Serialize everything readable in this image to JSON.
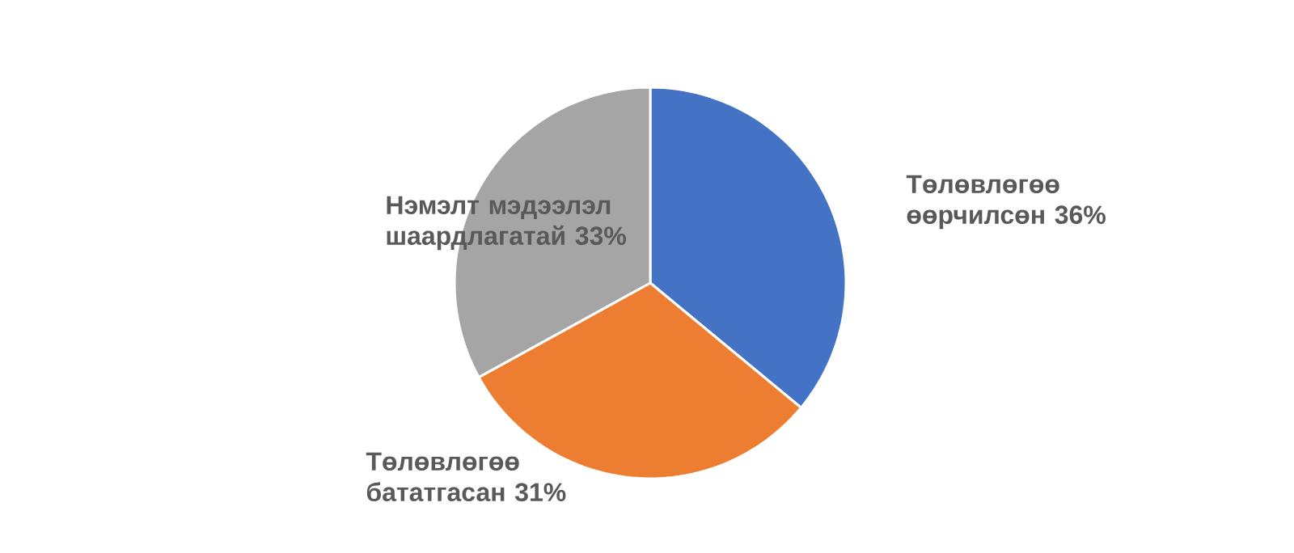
{
  "chart_data": {
    "type": "pie",
    "categories": [
      "Төлөвлөгөө өөрчилсөн",
      "Төлөвлөгөө бататгасан",
      "Нэмэлт мэдээлэл шаардлагатай"
    ],
    "values": [
      36,
      31,
      33
    ],
    "colors": [
      "#4472c4",
      "#ed7d31",
      "#a5a5a5"
    ],
    "value_labels": [
      "36%",
      "31%",
      "33%"
    ]
  }
}
